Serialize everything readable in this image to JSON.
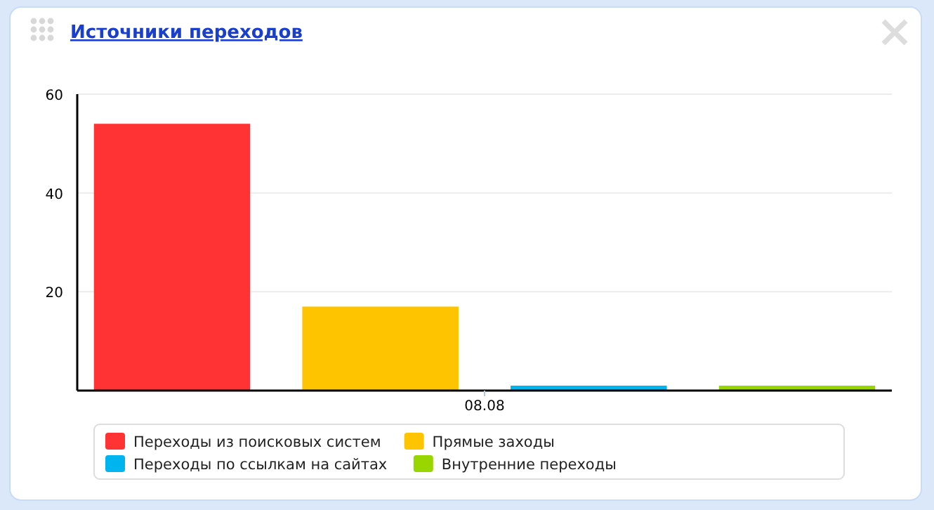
{
  "chart_data": {
    "type": "bar",
    "title": "Источники переходов",
    "categories": [
      "08.08"
    ],
    "series": [
      {
        "name": "Переходы из поисковых систем",
        "color": "#ff3333",
        "values": [
          54
        ]
      },
      {
        "name": "Прямые заходы",
        "color": "#ffc400",
        "values": [
          17
        ]
      },
      {
        "name": "Переходы по ссылкам на сайтах",
        "color": "#00b4f0",
        "values": [
          1
        ]
      },
      {
        "name": "Внутренние переходы",
        "color": "#99d600",
        "values": [
          1
        ]
      }
    ],
    "ylim": [
      0,
      60
    ],
    "yticks": [
      20,
      40,
      60
    ],
    "grid": "y",
    "legend": "bottom"
  }
}
